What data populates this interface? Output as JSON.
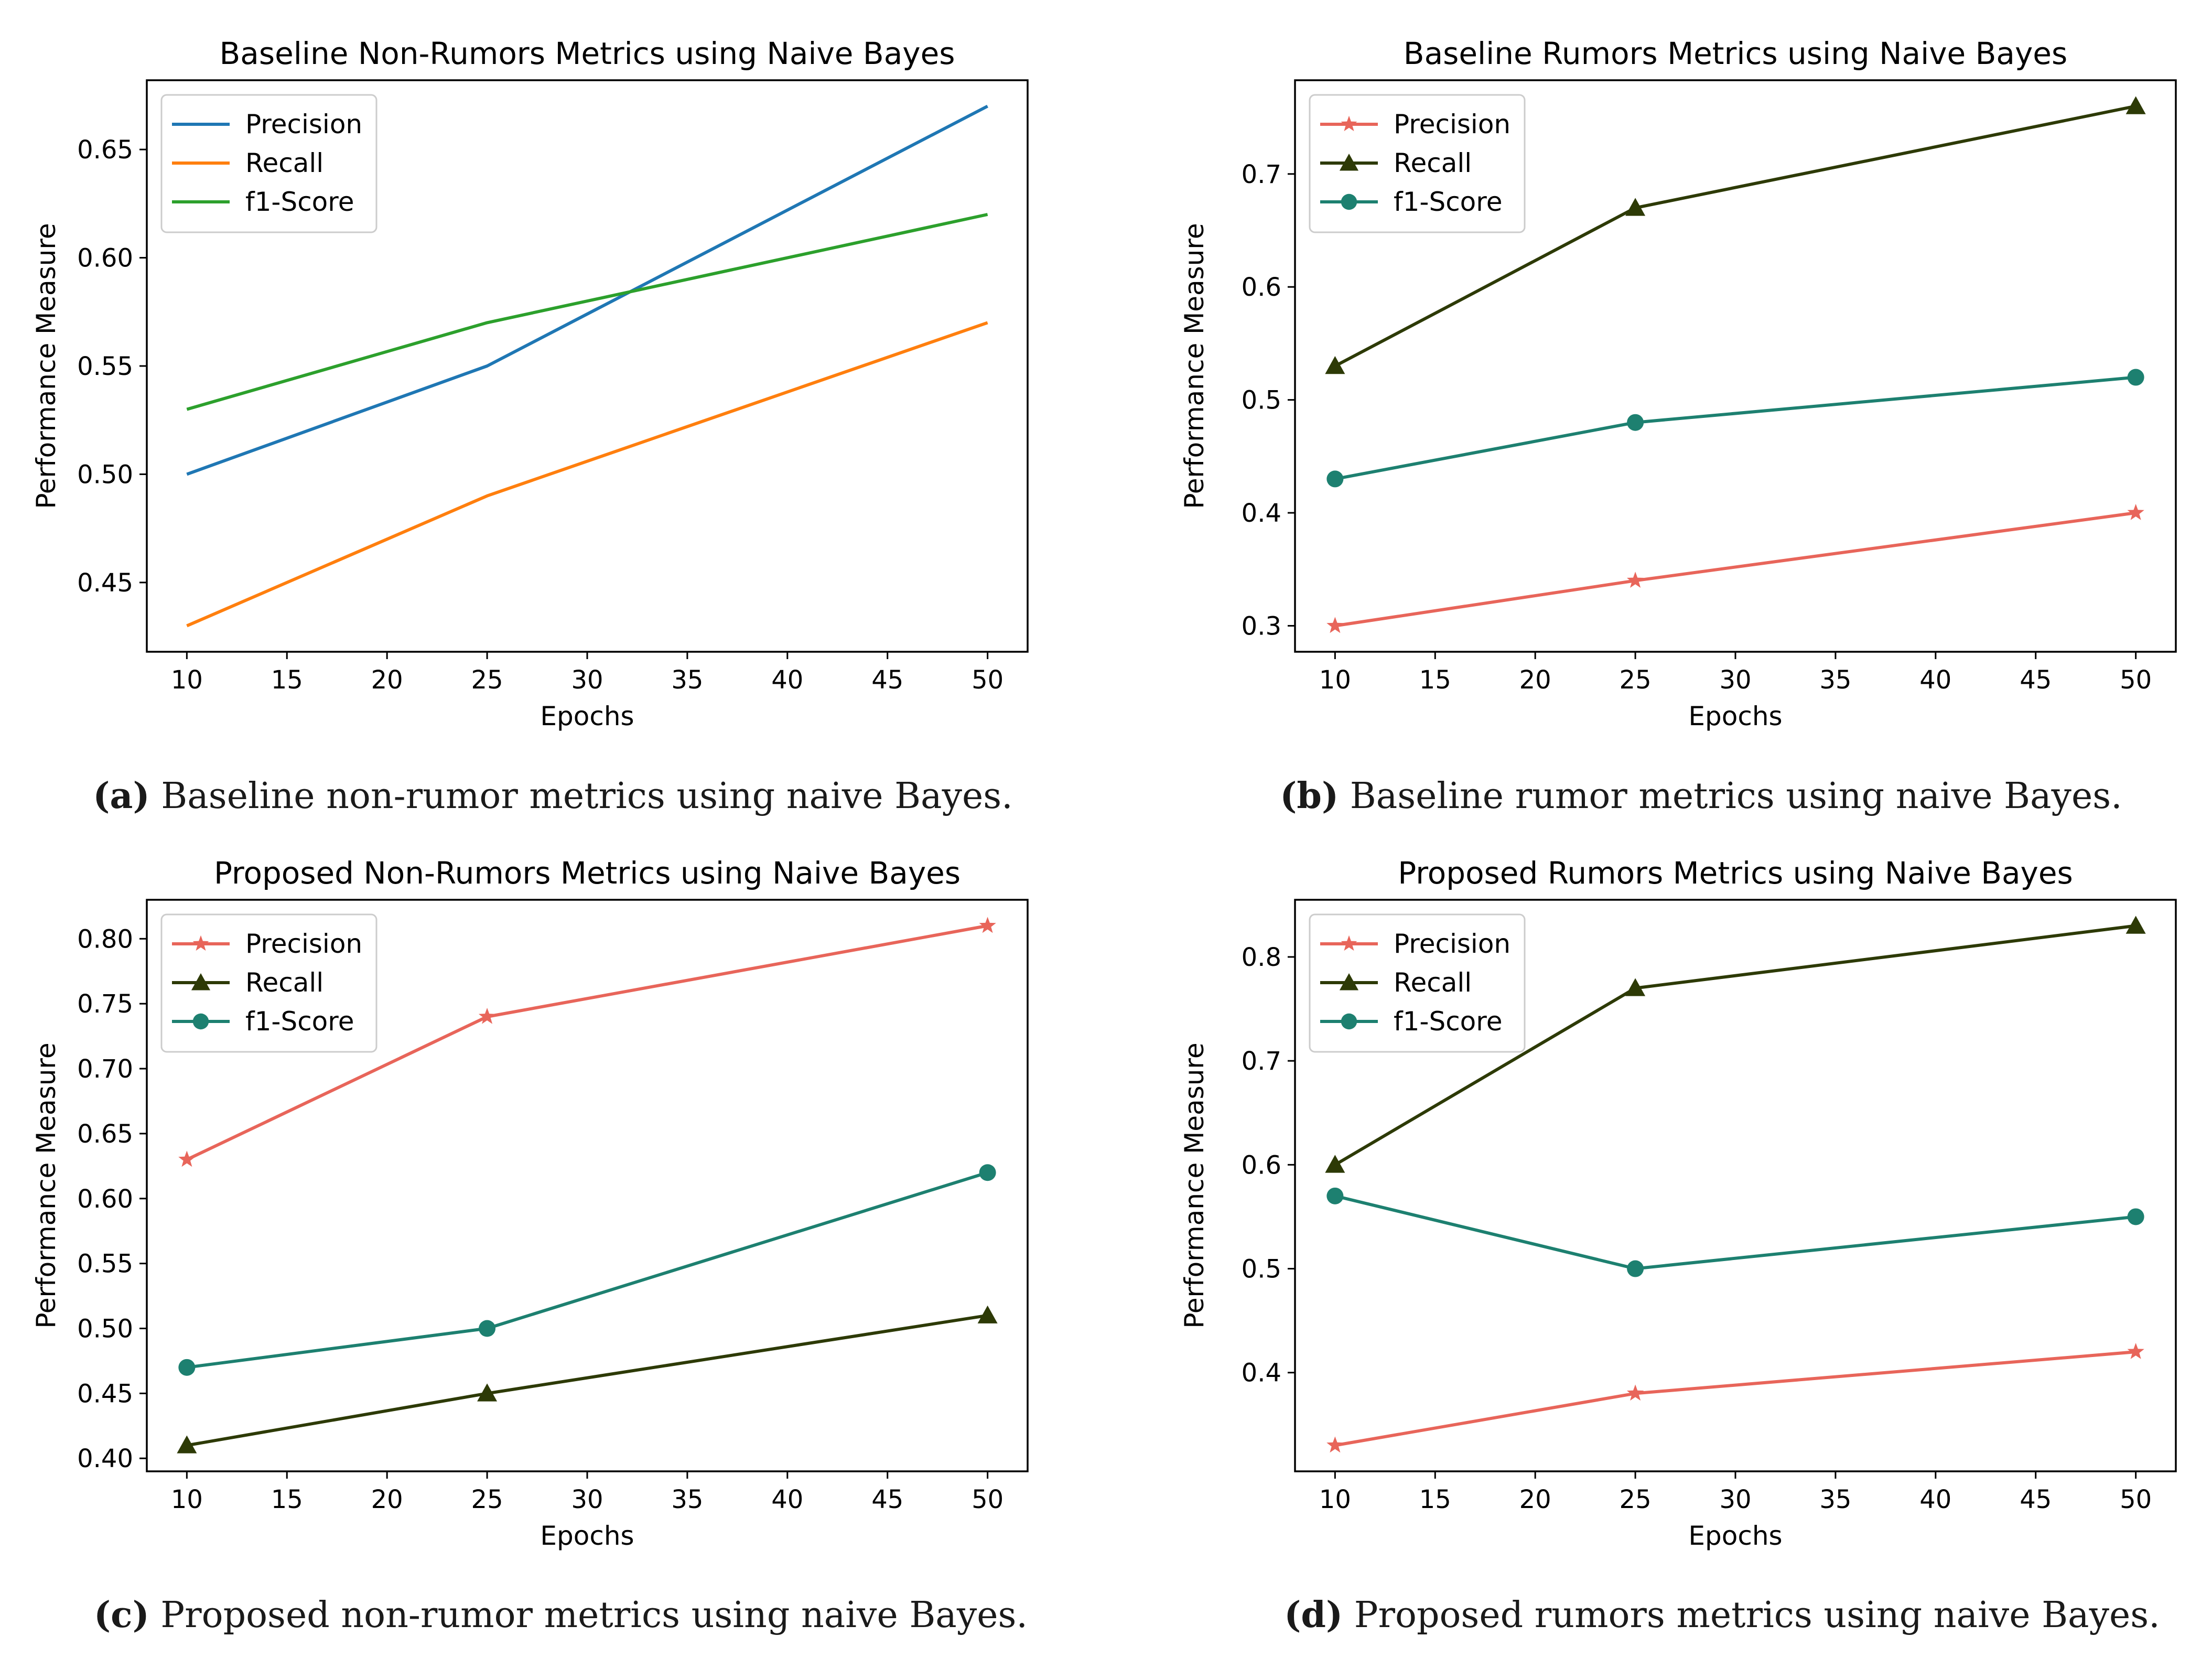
{
  "chart_data": [
    {
      "type": "line",
      "title": "Baseline Non-Rumors Metrics using Naive Bayes",
      "xlabel": "Epochs",
      "ylabel": "Performance Measure",
      "x": [
        10,
        25,
        50
      ],
      "xlim": [
        8,
        52
      ],
      "ylim": [
        0.418,
        0.682
      ],
      "xticks": [
        10,
        15,
        20,
        25,
        30,
        35,
        40,
        45,
        50
      ],
      "yticks": [
        0.45,
        0.5,
        0.55,
        0.6,
        0.65
      ],
      "ytick_labels": [
        "0.45",
        "0.50",
        "0.55",
        "0.60",
        "0.65"
      ],
      "legend": "top-left",
      "series": [
        {
          "name": "Precision",
          "values": [
            0.5,
            0.55,
            0.67
          ],
          "color": "#1f77b4",
          "marker": "none"
        },
        {
          "name": "Recall",
          "values": [
            0.43,
            0.49,
            0.57
          ],
          "color": "#ff7f0e",
          "marker": "none"
        },
        {
          "name": "f1-Score",
          "values": [
            0.53,
            0.57,
            0.62
          ],
          "color": "#2ca02c",
          "marker": "none"
        }
      ],
      "caption_label": "(a)",
      "caption_text": " Baseline non-rumor metrics using naive Bayes."
    },
    {
      "type": "line",
      "title": "Baseline Rumors Metrics using Naive Bayes",
      "xlabel": "Epochs",
      "ylabel": "Performance Measure",
      "x": [
        10,
        25,
        50
      ],
      "xlim": [
        8,
        52
      ],
      "ylim": [
        0.277,
        0.783
      ],
      "xticks": [
        10,
        15,
        20,
        25,
        30,
        35,
        40,
        45,
        50
      ],
      "yticks": [
        0.3,
        0.4,
        0.5,
        0.6,
        0.7
      ],
      "ytick_labels": [
        "0.3",
        "0.4",
        "0.5",
        "0.6",
        "0.7"
      ],
      "legend": "top-left",
      "series": [
        {
          "name": "Precision",
          "values": [
            0.3,
            0.34,
            0.4
          ],
          "color": "#e8655a",
          "marker": "star"
        },
        {
          "name": "Recall",
          "values": [
            0.53,
            0.67,
            0.76
          ],
          "color": "#2d3a06",
          "marker": "triangle"
        },
        {
          "name": "f1-Score",
          "values": [
            0.43,
            0.48,
            0.52
          ],
          "color": "#1d8070",
          "marker": "circle"
        }
      ],
      "caption_label": "(b)",
      "caption_text": " Baseline rumor metrics using naive Bayes."
    },
    {
      "type": "line",
      "title": "Proposed Non-Rumors Metrics using Naive Bayes",
      "xlabel": "Epochs",
      "ylabel": "Performance Measure",
      "x": [
        10,
        25,
        50
      ],
      "xlim": [
        8,
        52
      ],
      "ylim": [
        0.39,
        0.83
      ],
      "xticks": [
        10,
        15,
        20,
        25,
        30,
        35,
        40,
        45,
        50
      ],
      "yticks": [
        0.4,
        0.45,
        0.5,
        0.55,
        0.6,
        0.65,
        0.7,
        0.75,
        0.8
      ],
      "ytick_labels": [
        "0.40",
        "0.45",
        "0.50",
        "0.55",
        "0.60",
        "0.65",
        "0.70",
        "0.75",
        "0.80"
      ],
      "legend": "top-left",
      "series": [
        {
          "name": "Precision",
          "values": [
            0.63,
            0.74,
            0.81
          ],
          "color": "#e8655a",
          "marker": "star"
        },
        {
          "name": "Recall",
          "values": [
            0.41,
            0.45,
            0.51
          ],
          "color": "#2d3a06",
          "marker": "triangle"
        },
        {
          "name": "f1-Score",
          "values": [
            0.47,
            0.5,
            0.62
          ],
          "color": "#1d8070",
          "marker": "circle"
        }
      ],
      "caption_label": "(c)",
      "caption_text": " Proposed non-rumor metrics using naive Bayes."
    },
    {
      "type": "line",
      "title": "Proposed Rumors Metrics using Naive Bayes",
      "xlabel": "Epochs",
      "ylabel": "Performance Measure",
      "x": [
        10,
        25,
        50
      ],
      "xlim": [
        8,
        52
      ],
      "ylim": [
        0.305,
        0.855
      ],
      "xticks": [
        10,
        15,
        20,
        25,
        30,
        35,
        40,
        45,
        50
      ],
      "yticks": [
        0.4,
        0.5,
        0.6,
        0.7,
        0.8
      ],
      "ytick_labels": [
        "0.4",
        "0.5",
        "0.6",
        "0.7",
        "0.8"
      ],
      "legend": "top-left",
      "series": [
        {
          "name": "Precision",
          "values": [
            0.33,
            0.38,
            0.42
          ],
          "color": "#e8655a",
          "marker": "star"
        },
        {
          "name": "Recall",
          "values": [
            0.6,
            0.77,
            0.83
          ],
          "color": "#2d3a06",
          "marker": "triangle"
        },
        {
          "name": "f1-Score",
          "values": [
            0.57,
            0.5,
            0.55
          ],
          "color": "#1d8070",
          "marker": "circle"
        }
      ],
      "caption_label": "(d)",
      "caption_text": " Proposed rumors metrics using naive Bayes."
    }
  ]
}
